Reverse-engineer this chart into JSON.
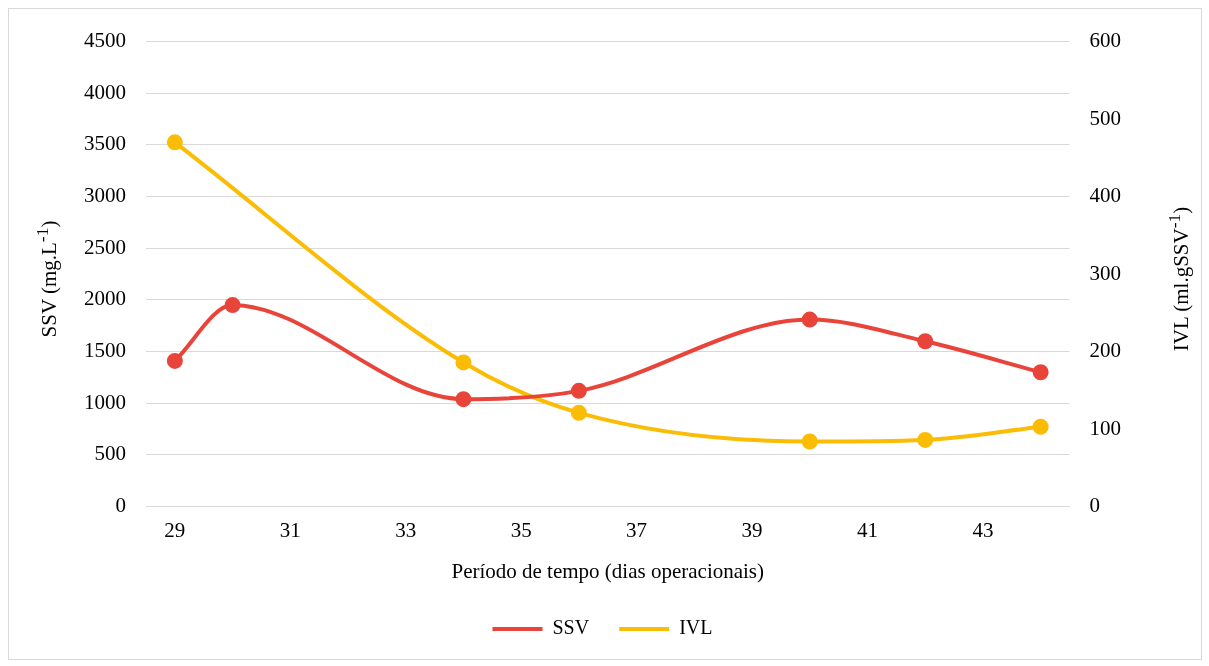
{
  "chart_data": {
    "type": "line",
    "xlabel": "Período de tempo (dias operacionais)",
    "ylabel": "SSV (mg.L$^{-1}$)",
    "y2label": "IVL (ml.gSSV$^{-1}$)",
    "x": [
      29,
      30,
      34,
      36,
      40,
      42,
      44
    ],
    "xlim": [
      28.5,
      44.5
    ],
    "xticks": [
      29,
      31,
      33,
      35,
      37,
      39,
      41,
      43
    ],
    "ylim": [
      0,
      4500
    ],
    "yticks": [
      0,
      500,
      1000,
      1500,
      2000,
      2500,
      3000,
      3500,
      4000,
      4500
    ],
    "y2lim": [
      0,
      600
    ],
    "y2ticks": [
      0,
      100,
      200,
      300,
      400,
      500,
      600
    ],
    "series": [
      {
        "name": "SSV",
        "color": "#e8443a",
        "values": [
          1410,
          1950,
          1040,
          1120,
          1810,
          1600,
          1300
        ]
      },
      {
        "name": "IVL",
        "color": "#fbbc05",
        "axis": "y2",
        "x": [
          29,
          34,
          36,
          40,
          42,
          44
        ],
        "values": [
          470,
          186,
          121,
          84,
          86,
          103
        ]
      }
    ],
    "grid": "y",
    "legend": "bottom",
    "marker": "circle",
    "line_style": "solid"
  }
}
